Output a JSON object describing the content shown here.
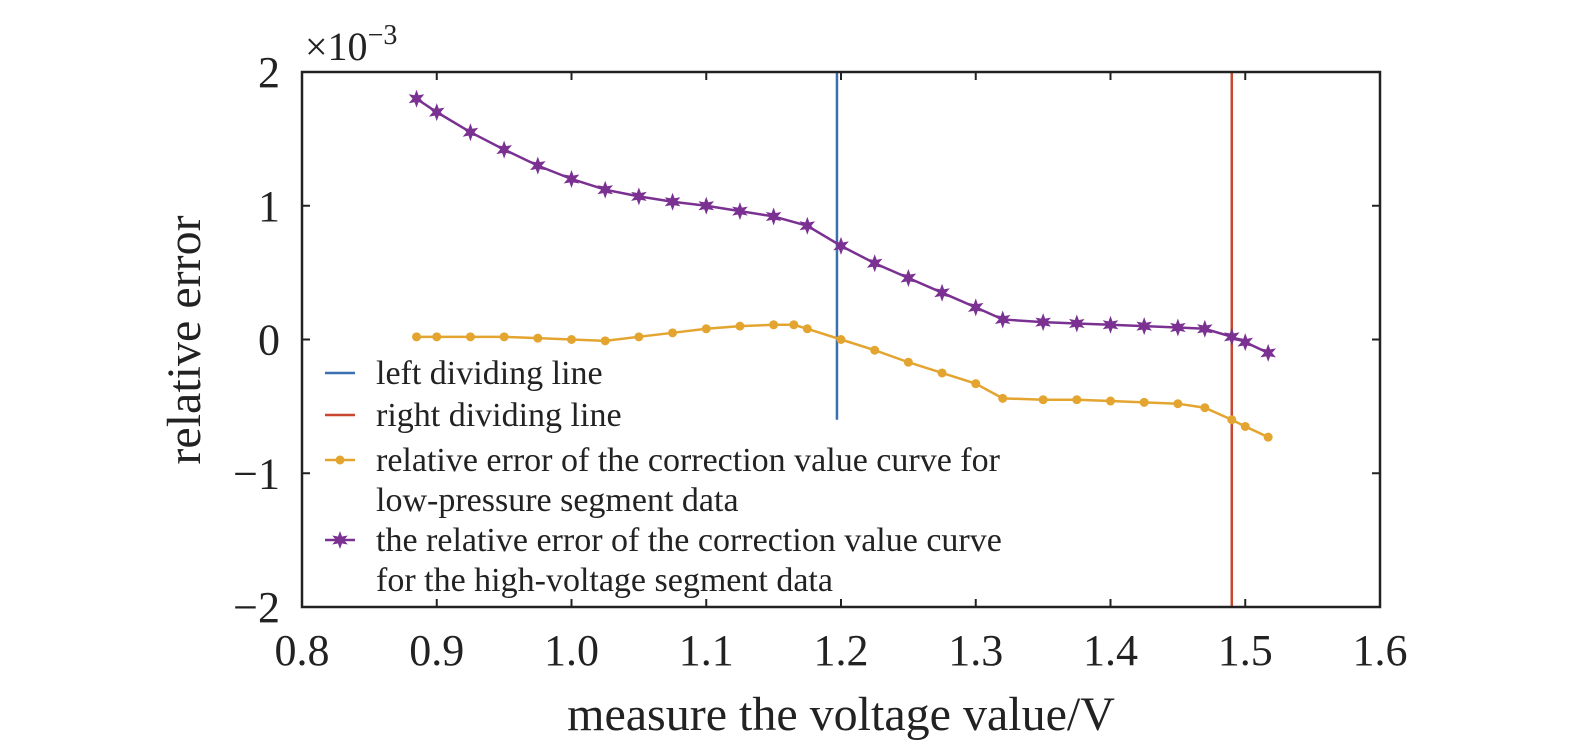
{
  "chart_data": {
    "type": "line",
    "xlabel": "measure the voltage value/V",
    "ylabel": "relative error",
    "y_multiplier": "×10",
    "y_multiplier_exp": "−3",
    "xlim": [
      0.8,
      1.6
    ],
    "ylim": [
      -2,
      2
    ],
    "xticks": [
      0.8,
      0.9,
      1.0,
      1.1,
      1.2,
      1.3,
      1.4,
      1.5,
      1.6
    ],
    "xtick_labels": [
      "0.8",
      "0.9",
      "1.0",
      "1.1",
      "1.2",
      "1.3",
      "1.4",
      "1.5",
      "1.6"
    ],
    "yticks": [
      -2,
      -1,
      0,
      1,
      2
    ],
    "ytick_labels": [
      "−2",
      "−1",
      "0",
      "1",
      "2"
    ],
    "grid": false,
    "legend_position": "lower-left",
    "vlines": [
      {
        "name": "left dividing line",
        "x": 1.197,
        "y_range": [
          -0.6,
          2
        ],
        "color": "#3a6fb0"
      },
      {
        "name": "right dividing line",
        "x": 1.49,
        "y_range": [
          -2,
          2
        ],
        "color": "#c8472e"
      }
    ],
    "series": [
      {
        "name": "relative error of the correction value curve for low-pressure segment data",
        "legend_lines": [
          "relative error of the correction value curve for",
          "low-pressure segment data"
        ],
        "marker": "dot",
        "color": "#e3a530",
        "x": [
          0.885,
          0.9,
          0.925,
          0.95,
          0.975,
          1.0,
          1.025,
          1.05,
          1.075,
          1.1,
          1.125,
          1.15,
          1.165,
          1.175,
          1.2,
          1.225,
          1.25,
          1.275,
          1.3,
          1.32,
          1.35,
          1.375,
          1.4,
          1.425,
          1.45,
          1.47,
          1.49,
          1.5,
          1.517
        ],
        "y": [
          0.02,
          0.02,
          0.02,
          0.02,
          0.01,
          0.0,
          -0.01,
          0.02,
          0.05,
          0.08,
          0.1,
          0.11,
          0.11,
          0.08,
          0.0,
          -0.08,
          -0.17,
          -0.25,
          -0.33,
          -0.44,
          -0.45,
          -0.45,
          -0.46,
          -0.47,
          -0.48,
          -0.51,
          -0.6,
          -0.65,
          -0.73
        ]
      },
      {
        "name": "the relative error of the correction value curve for the high-voltage segment data",
        "legend_lines": [
          "the relative error of the correction value curve",
          "for the high-voltage segment data"
        ],
        "marker": "star",
        "color": "#7a3192",
        "x": [
          0.885,
          0.9,
          0.925,
          0.95,
          0.975,
          1.0,
          1.025,
          1.05,
          1.075,
          1.1,
          1.125,
          1.15,
          1.175,
          1.2,
          1.225,
          1.25,
          1.275,
          1.3,
          1.32,
          1.35,
          1.375,
          1.4,
          1.425,
          1.45,
          1.47,
          1.49,
          1.5,
          1.517
        ],
        "y": [
          1.8,
          1.7,
          1.55,
          1.42,
          1.3,
          1.2,
          1.12,
          1.07,
          1.03,
          1.0,
          0.96,
          0.92,
          0.85,
          0.7,
          0.57,
          0.46,
          0.35,
          0.24,
          0.15,
          0.13,
          0.12,
          0.11,
          0.1,
          0.09,
          0.08,
          0.02,
          -0.02,
          -0.1
        ]
      }
    ]
  }
}
